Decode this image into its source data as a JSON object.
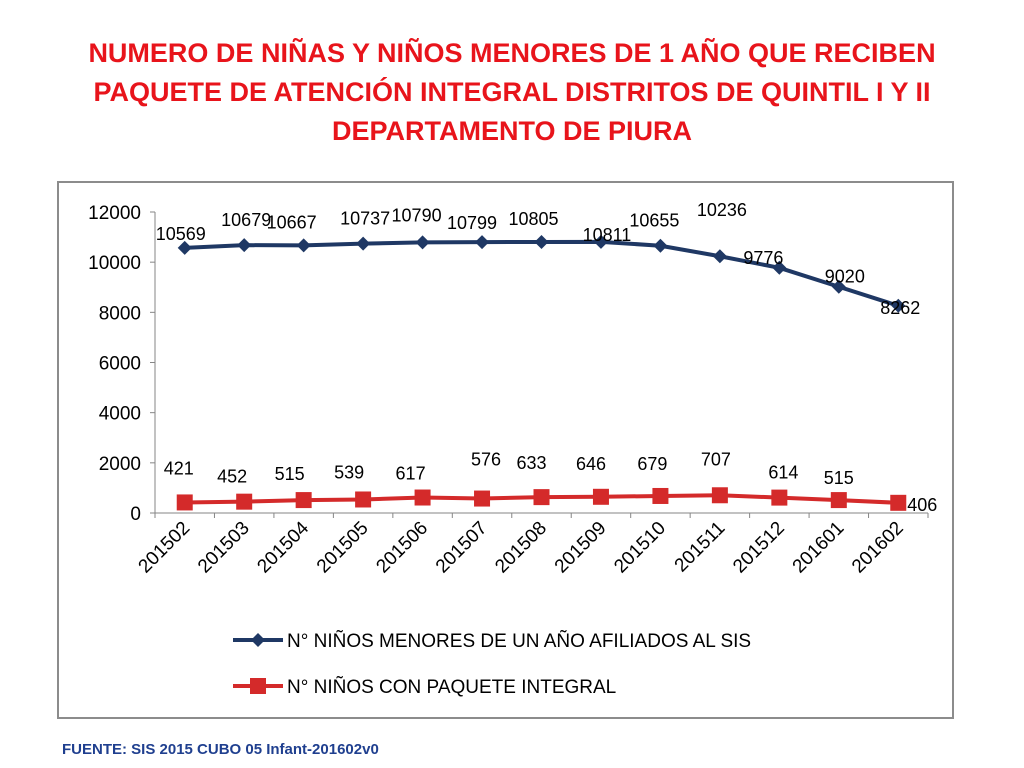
{
  "title": {
    "lines": [
      "NUMERO DE NIÑAS Y NIÑOS MENORES DE 1 AÑO QUE RECIBEN",
      "PAQUETE DE ATENCIÓN INTEGRAL  DISTRITOS DE QUINTIL I Y II",
      "DEPARTAMENTO DE PIURA"
    ]
  },
  "source": "FUENTE: SIS 2015 CUBO 05 Infant-201602v0",
  "colors": {
    "title": "#e8141b",
    "series_blue": "#1f3864",
    "series_red": "#d42a2a",
    "source": "#1f3f8f"
  },
  "chart_data": {
    "type": "line",
    "title": "",
    "xlabel": "",
    "ylabel": "",
    "ylim": [
      0,
      12000
    ],
    "yticks": [
      "0",
      "2000",
      "4000",
      "6000",
      "8000",
      "10000",
      "12000"
    ],
    "grid": false,
    "legend_position": "bottom",
    "categories": [
      "201502",
      "201503",
      "201504",
      "201505",
      "201506",
      "201507",
      "201508",
      "201509",
      "201510",
      "201511",
      "201512",
      "201601",
      "201602"
    ],
    "series": [
      {
        "name": "N° NIÑOS MENORES DE UN AÑO AFILIADOS AL SIS",
        "marker": "diamond",
        "values": [
          10569,
          10679,
          10667,
          10737,
          10790,
          10799,
          10805,
          10811,
          10655,
          10236,
          9776,
          9020,
          8262
        ],
        "labels": [
          "10569",
          "10679",
          "10667",
          "10737",
          "10790",
          "10799",
          "10805",
          "10811",
          "10655",
          "10236",
          "9776",
          "9020",
          "8262"
        ]
      },
      {
        "name": "N° NIÑOS CON PAQUETE INTEGRAL",
        "marker": "square",
        "values": [
          421,
          452,
          515,
          539,
          617,
          576,
          633,
          646,
          679,
          707,
          614,
          515,
          406
        ],
        "labels": [
          "421",
          "452",
          "515",
          "539",
          "617",
          "576",
          "633",
          "646",
          "679",
          "707",
          "614",
          "515",
          "406"
        ]
      }
    ]
  }
}
